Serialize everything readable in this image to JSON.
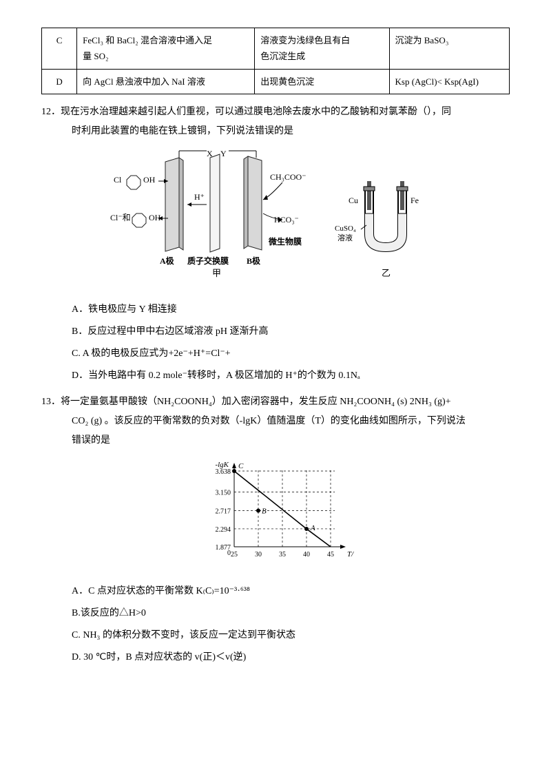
{
  "table": {
    "rows": [
      {
        "letter": "C",
        "c1a": "FeCl₃ 和 BaCl₂ 混合溶液中通入足",
        "c1b": "量 SO₂",
        "c2a": "溶液变为浅绿色且有白",
        "c2b": "色沉淀生成",
        "c3": "沉淀为 BaSO₃"
      },
      {
        "letter": "D",
        "c1": "向 AgCl 悬浊液中加入 NaI 溶液",
        "c2": "出现黄色沉淀",
        "c3": "Ksp (AgCl)< Ksp(AgI)"
      }
    ]
  },
  "q12": {
    "num": "12．",
    "text_a": "现在污水治理越来越引起人们重视，可以通过膜电池除去废水中的乙酸钠和对氯苯酚（），同",
    "text_b": "时利用此装置的电能在铁上镀铜，下列说法错误的是",
    "diagram": {
      "labels": {
        "X": "X",
        "Y": "Y",
        "cl_label_top_l": "Cl",
        "oh_top": "OH",
        "cl_label_bot_l": "Cl⁻和",
        "oh_bot": "OH",
        "h_plus": "H⁺",
        "ch3coo": "CH₃COO⁻",
        "hco3": "HCO₃⁻",
        "a_pole": "A极",
        "membrane": "质子交换膜",
        "b_pole": "B极",
        "bio": "微生物膜",
        "jia": "甲",
        "cu": "Cu",
        "fe": "Fe",
        "cuso4a": "CuSO₄",
        "cuso4b": "溶液",
        "yi": "乙"
      },
      "colors": {
        "plate_fill": "#e8e8e8",
        "plate_stroke": "#222",
        "arrow": "#222",
        "ring": "#222"
      }
    },
    "opts": {
      "A": "A．铁电极应与 Y 相连接",
      "B": "B．反应过程中甲中右边区域溶液 pH 逐渐升高",
      "C": "C. A 极的电极反应式为+2e⁻+H⁺=Cl⁻+",
      "D": "D．当外电路中有 0.2 mole⁻转移时，A 极区增加的 H⁺的个数为 0.1Nₐ"
    }
  },
  "q13": {
    "num": "13．",
    "text_a": "将一定量氨基甲酸铵（NH₂COONH₄）加入密闭容器中，发生反应 NH₂COONH₄ (s) 2NH₃ (g)+",
    "text_b": "CO₂ (g) 。该反应的平衡常数的负对数（-lgK）值随温度（T）的变化曲线如图所示，下列说法",
    "text_c": "错误的是",
    "chart": {
      "y_label": "-lgK",
      "x_label": "T/℃",
      "y_ticks": [
        "3.638",
        "3.150",
        "2.717",
        "2.294",
        "1.877"
      ],
      "x_ticks": [
        "25",
        "30",
        "35",
        "40",
        "45"
      ],
      "points": {
        "C": "C",
        "B": "B",
        "A": "A"
      },
      "colors": {
        "axis": "#000",
        "grid": "#000",
        "line": "#000",
        "point": "#000"
      },
      "y_positions": [
        3.638,
        3.15,
        2.717,
        2.294,
        1.877
      ],
      "x_positions": [
        25,
        30,
        35,
        40,
        45
      ]
    },
    "opts": {
      "A": "A．C 点对应状态的平衡常数 K₍C₎=10⁻³·⁶³⁸",
      "B": "B.该反应的△H>0",
      "C": "C. NH₃ 的体积分数不变时，该反应一定达到平衡状态",
      "D": "D. 30 ℃时，B 点对应状态的 v(正)＜v(逆)"
    }
  }
}
